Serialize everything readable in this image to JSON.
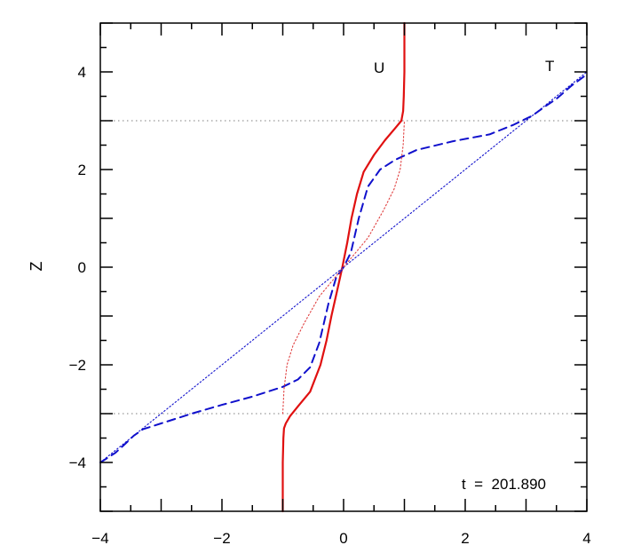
{
  "chart_data": {
    "type": "line",
    "title": "",
    "xlabel": "",
    "ylabel": "Z",
    "xlim": [
      -4,
      4
    ],
    "ylim": [
      -5,
      5
    ],
    "xticks": [
      -4,
      -2,
      0,
      2,
      4
    ],
    "yticks": [
      -4,
      -2,
      0,
      2,
      4
    ],
    "xtick_labels": [
      "−4",
      "−2",
      "0",
      "2",
      "4"
    ],
    "ytick_labels": [
      "−4",
      "−2",
      "0",
      "2",
      "4"
    ],
    "grid": false,
    "reference_lines": [
      {
        "y": 3
      },
      {
        "y": -3
      }
    ],
    "annotations": {
      "time": "t  =  201.890",
      "label_u": "U",
      "label_t": "T"
    },
    "series": [
      {
        "name": "U",
        "color": "#e01010",
        "style": "solid",
        "points": [
          [
            -1.0,
            -5.0
          ],
          [
            -1.0,
            -4.5
          ],
          [
            -1.0,
            -4.0
          ],
          [
            -0.99,
            -3.5
          ],
          [
            -0.98,
            -3.3
          ],
          [
            -0.95,
            -3.2
          ],
          [
            -0.88,
            -3.05
          ],
          [
            -0.75,
            -2.85
          ],
          [
            -0.55,
            -2.55
          ],
          [
            -0.38,
            -2.0
          ],
          [
            -0.28,
            -1.5
          ],
          [
            -0.2,
            -1.0
          ],
          [
            -0.11,
            -0.5
          ],
          [
            -0.02,
            0.0
          ],
          [
            0.06,
            0.5
          ],
          [
            0.13,
            1.0
          ],
          [
            0.22,
            1.5
          ],
          [
            0.33,
            1.95
          ],
          [
            0.5,
            2.3
          ],
          [
            0.68,
            2.6
          ],
          [
            0.85,
            2.85
          ],
          [
            0.95,
            3.0
          ],
          [
            0.98,
            3.2
          ],
          [
            0.99,
            3.5
          ],
          [
            1.0,
            4.0
          ],
          [
            1.0,
            5.0
          ]
        ]
      },
      {
        "name": "T",
        "color": "#1010cc",
        "style": "dashed",
        "points": [
          [
            -4.0,
            -4.0
          ],
          [
            -3.9,
            -3.92
          ],
          [
            -3.75,
            -3.8
          ],
          [
            -3.6,
            -3.63
          ],
          [
            -3.45,
            -3.45
          ],
          [
            -3.3,
            -3.32
          ],
          [
            -3.0,
            -3.2
          ],
          [
            -2.5,
            -3.0
          ],
          [
            -2.0,
            -2.82
          ],
          [
            -1.5,
            -2.65
          ],
          [
            -1.0,
            -2.45
          ],
          [
            -0.75,
            -2.3
          ],
          [
            -0.55,
            -2.05
          ],
          [
            -0.4,
            -1.55
          ],
          [
            -0.25,
            -0.75
          ],
          [
            -0.12,
            -0.2
          ],
          [
            0.0,
            0.0
          ],
          [
            0.12,
            0.3
          ],
          [
            0.25,
            1.0
          ],
          [
            0.4,
            1.65
          ],
          [
            0.6,
            2.0
          ],
          [
            0.85,
            2.2
          ],
          [
            1.2,
            2.4
          ],
          [
            1.8,
            2.58
          ],
          [
            2.4,
            2.72
          ],
          [
            2.8,
            2.92
          ],
          [
            3.1,
            3.1
          ],
          [
            3.3,
            3.28
          ],
          [
            3.5,
            3.45
          ],
          [
            3.75,
            3.72
          ],
          [
            4.0,
            3.95
          ]
        ]
      },
      {
        "name": "",
        "color": "#1010cc",
        "style": "dotted",
        "points": [
          [
            -4.0,
            -4.0
          ],
          [
            4.0,
            4.0
          ]
        ]
      },
      {
        "name": "",
        "color": "#e04040",
        "style": "dotted",
        "points": [
          [
            -1.0,
            -3.0
          ],
          [
            -0.98,
            -2.5
          ],
          [
            -0.93,
            -2.0
          ],
          [
            -0.83,
            -1.6
          ],
          [
            -0.65,
            -1.15
          ],
          [
            -0.4,
            -0.6
          ],
          [
            0.0,
            0.0
          ],
          [
            0.4,
            0.6
          ],
          [
            0.65,
            1.15
          ],
          [
            0.83,
            1.6
          ],
          [
            0.93,
            2.0
          ],
          [
            0.98,
            2.5
          ],
          [
            1.0,
            3.0
          ]
        ]
      }
    ]
  },
  "colors": {
    "axis": "#000000",
    "reference_line": "#999999"
  }
}
